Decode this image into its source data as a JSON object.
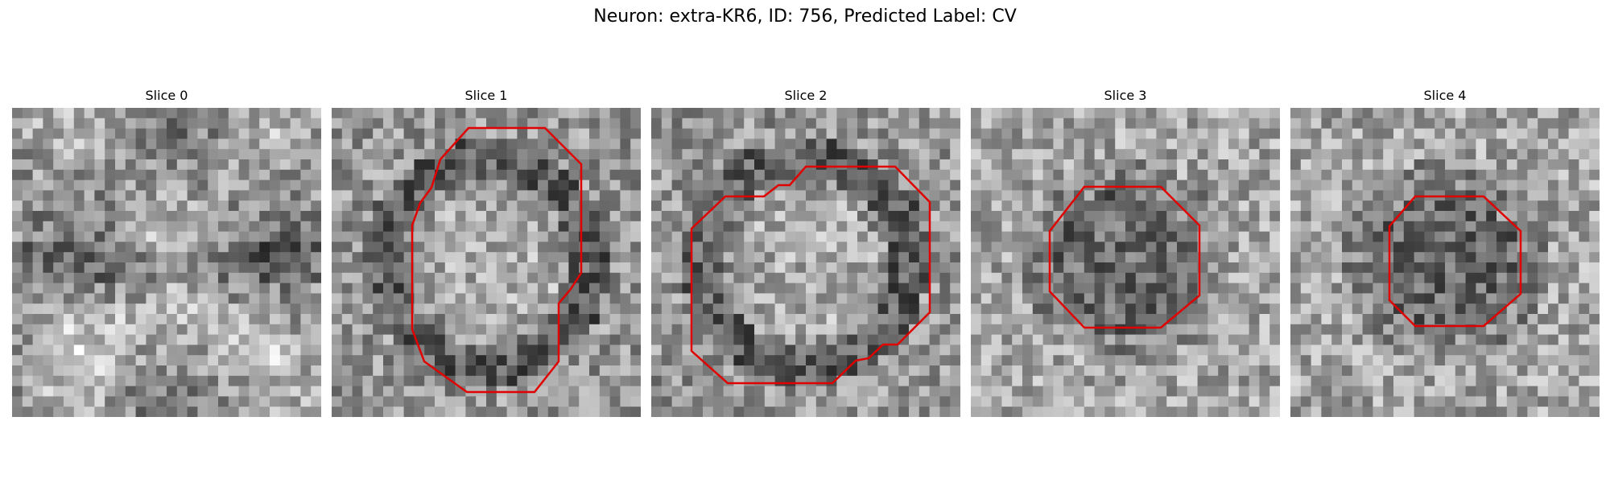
{
  "figure": {
    "title": "Neuron: extra-KR6, ID: 756, Predicted Label: CV"
  },
  "panels": [
    {
      "title": "Slice 0",
      "has_contour": false,
      "seed": 11
    },
    {
      "title": "Slice 1",
      "has_contour": true,
      "seed": 23
    },
    {
      "title": "Slice 2",
      "has_contour": true,
      "seed": 37
    },
    {
      "title": "Slice 3",
      "has_contour": true,
      "seed": 51
    },
    {
      "title": "Slice 4",
      "has_contour": true,
      "seed": 67
    }
  ],
  "colors": {
    "contour": "#e00000",
    "background": "#ffffff"
  }
}
